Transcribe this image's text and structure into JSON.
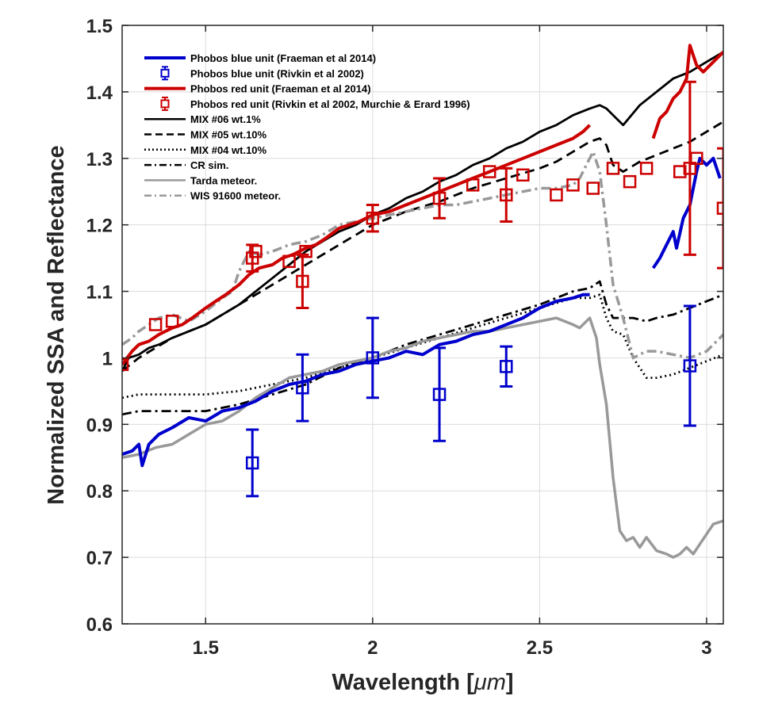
{
  "chart_data": {
    "type": "line",
    "xlabel": "Wavelength [",
    "xlabel_unit": "μm",
    "xlabel_end": "]",
    "ylabel": "Normalized SSA and Reflectance",
    "xlim": [
      1.25,
      3.05
    ],
    "ylim": [
      0.6,
      1.5
    ],
    "x_ticks": [
      1.5,
      2,
      2.5,
      3
    ],
    "x_tick_labels": [
      "1.5",
      "2",
      "2.5",
      "3"
    ],
    "y_ticks": [
      0.6,
      0.7,
      0.8,
      0.9,
      1.0,
      1.1,
      1.2,
      1.3,
      1.4,
      1.5
    ],
    "y_tick_labels": [
      "0.6",
      "0.7",
      "0.8",
      "0.9",
      "1",
      "1.1",
      "1.2",
      "1.3",
      "1.4",
      "1.5"
    ],
    "grid": true,
    "legend_position": "top-left",
    "series": [
      {
        "name": "Phobos blue unit (Fraeman et al 2014)",
        "kind": "line",
        "color": "#0000cc",
        "dash": "solid",
        "segments": [
          {
            "x": [
              1.25,
              1.28,
              1.3,
              1.31,
              1.33,
              1.36,
              1.4,
              1.45,
              1.5,
              1.55,
              1.6,
              1.65,
              1.7,
              1.75,
              1.8,
              1.85,
              1.9,
              1.95,
              2.0,
              2.05,
              2.1,
              2.15,
              2.2,
              2.25,
              2.3,
              2.35,
              2.4,
              2.45,
              2.5,
              2.55,
              2.6,
              2.63,
              2.65
            ],
            "y": [
              0.855,
              0.86,
              0.87,
              0.838,
              0.87,
              0.885,
              0.895,
              0.91,
              0.905,
              0.92,
              0.925,
              0.935,
              0.95,
              0.96,
              0.965,
              0.975,
              0.98,
              0.99,
              0.995,
              1.0,
              1.01,
              1.005,
              1.02,
              1.025,
              1.035,
              1.04,
              1.05,
              1.06,
              1.075,
              1.085,
              1.09,
              1.095,
              1.095
            ]
          },
          {
            "x": [
              2.84,
              2.86,
              2.88,
              2.9,
              2.91,
              2.93,
              2.95,
              2.97,
              2.98,
              3.0,
              3.02,
              3.04
            ],
            "y": [
              1.135,
              1.15,
              1.17,
              1.19,
              1.165,
              1.21,
              1.23,
              1.28,
              1.3,
              1.29,
              1.3,
              1.27
            ]
          }
        ]
      },
      {
        "name": "Phobos blue unit (Rivkin et al 2002)",
        "kind": "errorbar",
        "color": "#0000cc",
        "x": [
          1.64,
          1.79,
          2.0,
          2.2,
          2.4,
          2.95
        ],
        "y": [
          0.842,
          0.955,
          1.0,
          0.945,
          0.987,
          0.988
        ],
        "err": [
          0.05,
          0.05,
          0.06,
          0.07,
          0.03,
          0.09
        ]
      },
      {
        "name": "Phobos red unit (Fraeman et al 2014)",
        "kind": "line",
        "color": "#cc0000",
        "dash": "solid",
        "segments": [
          {
            "x": [
              1.25,
              1.28,
              1.3,
              1.33,
              1.36,
              1.4,
              1.43,
              1.46,
              1.5,
              1.53,
              1.56,
              1.6,
              1.63,
              1.66,
              1.7,
              1.73,
              1.76,
              1.8,
              1.83,
              1.86,
              1.9,
              1.93,
              1.96,
              2.0,
              2.05,
              2.1,
              2.15,
              2.2,
              2.25,
              2.3,
              2.35,
              2.4,
              2.45,
              2.5,
              2.55,
              2.6,
              2.63,
              2.65
            ],
            "y": [
              0.99,
              1.01,
              1.02,
              1.025,
              1.035,
              1.045,
              1.05,
              1.06,
              1.075,
              1.085,
              1.095,
              1.11,
              1.125,
              1.135,
              1.14,
              1.15,
              1.155,
              1.165,
              1.17,
              1.18,
              1.195,
              1.2,
              1.205,
              1.215,
              1.22,
              1.23,
              1.24,
              1.25,
              1.26,
              1.27,
              1.28,
              1.29,
              1.3,
              1.31,
              1.32,
              1.33,
              1.34,
              1.35
            ]
          },
          {
            "x": [
              2.84,
              2.86,
              2.88,
              2.9,
              2.92,
              2.94,
              2.95,
              2.97,
              2.99,
              3.01,
              3.03,
              3.05
            ],
            "y": [
              1.33,
              1.36,
              1.37,
              1.39,
              1.4,
              1.42,
              1.47,
              1.44,
              1.43,
              1.44,
              1.45,
              1.46
            ]
          }
        ]
      },
      {
        "name": "Phobos red unit (Rivkin et al 2002, Murchie & Erard 1996)",
        "kind": "errorbar",
        "color": "#cc0000",
        "x": [
          1.25,
          1.35,
          1.4,
          1.64,
          1.65,
          1.75,
          1.79,
          1.8,
          2.0,
          2.2,
          2.3,
          2.35,
          2.4,
          2.45,
          2.55,
          2.6,
          2.66,
          2.72,
          2.77,
          2.82,
          2.92,
          2.95,
          2.97,
          3.05
        ],
        "y": [
          0.99,
          1.05,
          1.055,
          1.15,
          1.16,
          1.145,
          1.115,
          1.16,
          1.21,
          1.24,
          1.26,
          1.28,
          1.245,
          1.275,
          1.245,
          1.26,
          1.255,
          1.285,
          1.265,
          1.285,
          1.28,
          1.285,
          1.3,
          1.225
        ],
        "err": [
          0,
          0,
          0,
          0.02,
          0,
          0,
          0.04,
          0,
          0.02,
          0.03,
          0,
          0,
          0.04,
          0,
          0,
          0,
          0,
          0,
          0,
          0,
          0,
          0.13,
          0,
          0.09
        ]
      },
      {
        "name": "MIX #06 wt.1%",
        "kind": "line",
        "color": "#000000",
        "dash": "solid",
        "segments": [
          {
            "x": [
              1.25,
              1.27,
              1.3,
              1.33,
              1.36,
              1.4,
              1.45,
              1.5,
              1.55,
              1.6,
              1.65,
              1.7,
              1.75,
              1.8,
              1.85,
              1.9,
              1.95,
              2.0,
              2.05,
              2.1,
              2.15,
              2.2,
              2.25,
              2.3,
              2.35,
              2.4,
              2.45,
              2.5,
              2.55,
              2.6,
              2.65,
              2.68,
              2.7,
              2.72,
              2.75,
              2.8,
              2.85,
              2.9,
              2.95,
              3.0,
              3.05
            ],
            "y": [
              0.98,
              1.0,
              1.005,
              1.015,
              1.02,
              1.03,
              1.04,
              1.05,
              1.065,
              1.08,
              1.1,
              1.12,
              1.14,
              1.16,
              1.175,
              1.19,
              1.2,
              1.215,
              1.225,
              1.24,
              1.25,
              1.265,
              1.275,
              1.29,
              1.3,
              1.315,
              1.325,
              1.34,
              1.35,
              1.365,
              1.375,
              1.38,
              1.375,
              1.365,
              1.35,
              1.38,
              1.4,
              1.42,
              1.43,
              1.445,
              1.46
            ]
          }
        ]
      },
      {
        "name": "MIX #05 wt.10%",
        "kind": "line",
        "color": "#000000",
        "dash": "dashed",
        "segments": [
          {
            "x": [
              1.25,
              1.3,
              1.4,
              1.5,
              1.6,
              1.7,
              1.8,
              1.9,
              2.0,
              2.1,
              2.2,
              2.3,
              2.4,
              2.5,
              2.55,
              2.6,
              2.65,
              2.68,
              2.7,
              2.72,
              2.75,
              2.8,
              2.85,
              2.9,
              2.95,
              3.0,
              3.05
            ],
            "y": [
              0.98,
              1.0,
              1.03,
              1.05,
              1.08,
              1.11,
              1.14,
              1.17,
              1.2,
              1.22,
              1.235,
              1.255,
              1.27,
              1.285,
              1.295,
              1.31,
              1.325,
              1.33,
              1.32,
              1.29,
              1.28,
              1.295,
              1.305,
              1.315,
              1.325,
              1.34,
              1.355
            ]
          }
        ]
      },
      {
        "name": "MIX #04 wt.10%",
        "kind": "line",
        "color": "#000000",
        "dash": "dotted",
        "segments": [
          {
            "x": [
              1.25,
              1.3,
              1.4,
              1.5,
              1.6,
              1.7,
              1.8,
              1.9,
              2.0,
              2.1,
              2.2,
              2.3,
              2.4,
              2.5,
              2.6,
              2.65,
              2.68,
              2.7,
              2.72,
              2.75,
              2.78,
              2.82,
              2.85,
              2.9,
              2.95,
              3.0,
              3.05
            ],
            "y": [
              0.94,
              0.945,
              0.945,
              0.945,
              0.95,
              0.96,
              0.97,
              0.985,
              1.0,
              1.015,
              1.03,
              1.045,
              1.06,
              1.075,
              1.09,
              1.09,
              1.095,
              1.06,
              1.04,
              1.035,
              1.0,
              0.97,
              0.97,
              0.975,
              0.985,
              0.995,
              1.005
            ]
          }
        ]
      },
      {
        "name": "CR sim.",
        "kind": "line",
        "color": "#000000",
        "dash": "dashdot",
        "segments": [
          {
            "x": [
              1.25,
              1.3,
              1.4,
              1.5,
              1.6,
              1.7,
              1.8,
              1.9,
              2.0,
              2.1,
              2.2,
              2.3,
              2.4,
              2.5,
              2.6,
              2.65,
              2.68,
              2.7,
              2.72,
              2.75,
              2.78,
              2.82,
              2.85,
              2.9,
              2.95,
              3.0,
              3.05
            ],
            "y": [
              0.915,
              0.92,
              0.92,
              0.92,
              0.93,
              0.945,
              0.96,
              0.985,
              1.0,
              1.02,
              1.035,
              1.05,
              1.065,
              1.08,
              1.1,
              1.105,
              1.115,
              1.08,
              1.06,
              1.06,
              1.06,
              1.055,
              1.06,
              1.065,
              1.075,
              1.085,
              1.095
            ]
          }
        ]
      },
      {
        "name": "Tarda meteor.",
        "kind": "line",
        "color": "#999999",
        "dash": "solid",
        "segments": [
          {
            "x": [
              1.25,
              1.3,
              1.35,
              1.4,
              1.45,
              1.5,
              1.55,
              1.6,
              1.65,
              1.7,
              1.75,
              1.8,
              1.85,
              1.9,
              1.95,
              2.0,
              2.05,
              2.1,
              2.15,
              2.2,
              2.25,
              2.3,
              2.35,
              2.4,
              2.45,
              2.5,
              2.55,
              2.6,
              2.62,
              2.64,
              2.65,
              2.67,
              2.68,
              2.7,
              2.72,
              2.74,
              2.76,
              2.78,
              2.8,
              2.82,
              2.85,
              2.88,
              2.9,
              2.92,
              2.94,
              2.96,
              2.98,
              3.0,
              3.02,
              3.05
            ],
            "y": [
              0.85,
              0.855,
              0.865,
              0.87,
              0.885,
              0.9,
              0.905,
              0.92,
              0.94,
              0.955,
              0.97,
              0.975,
              0.98,
              0.99,
              0.995,
              1.0,
              1.01,
              1.015,
              1.025,
              1.03,
              1.035,
              1.04,
              1.04,
              1.045,
              1.05,
              1.055,
              1.06,
              1.05,
              1.045,
              1.055,
              1.06,
              1.03,
              0.99,
              0.93,
              0.82,
              0.74,
              0.725,
              0.73,
              0.715,
              0.73,
              0.71,
              0.705,
              0.7,
              0.705,
              0.715,
              0.705,
              0.72,
              0.735,
              0.75,
              0.755
            ]
          }
        ]
      },
      {
        "name": "WIS 91600 meteor.",
        "kind": "line",
        "color": "#999999",
        "dash": "dashdot",
        "segments": [
          {
            "x": [
              1.25,
              1.28,
              1.3,
              1.33,
              1.36,
              1.4,
              1.45,
              1.5,
              1.55,
              1.58,
              1.6,
              1.63,
              1.66,
              1.7,
              1.75,
              1.8,
              1.85,
              1.9,
              1.95,
              2.0,
              2.05,
              2.1,
              2.15,
              2.2,
              2.25,
              2.3,
              2.35,
              2.4,
              2.45,
              2.5,
              2.55,
              2.6,
              2.62,
              2.64,
              2.66,
              2.68,
              2.7,
              2.72,
              2.75,
              2.78,
              2.8,
              2.82,
              2.85,
              2.9,
              2.95,
              3.0,
              3.05
            ],
            "y": [
              1.02,
              1.03,
              1.04,
              1.05,
              1.06,
              1.065,
              1.055,
              1.07,
              1.09,
              1.1,
              1.13,
              1.16,
              1.155,
              1.16,
              1.17,
              1.175,
              1.185,
              1.2,
              1.205,
              1.21,
              1.215,
              1.22,
              1.225,
              1.23,
              1.23,
              1.235,
              1.24,
              1.245,
              1.25,
              1.255,
              1.255,
              1.26,
              1.27,
              1.29,
              1.31,
              1.28,
              1.2,
              1.11,
              1.06,
              1.0,
              1.005,
              1.01,
              1.01,
              1.005,
              1.0,
              1.01,
              1.035
            ]
          }
        ]
      }
    ]
  }
}
